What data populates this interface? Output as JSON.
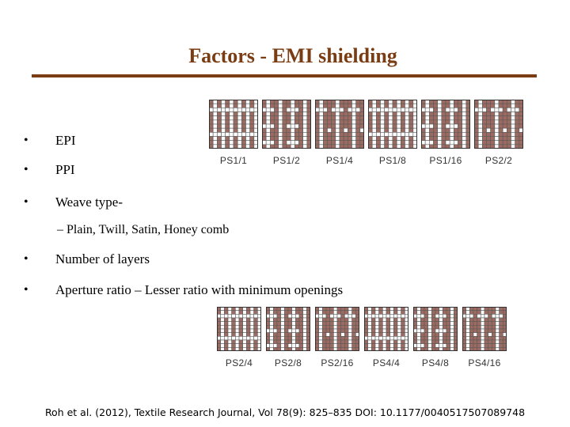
{
  "slide": {
    "title": "Factors - EMI shielding",
    "bullet_symbol": "•",
    "bullets": [
      {
        "text": "EPI"
      },
      {
        "text": "PPI"
      },
      {
        "text": "Weave type-"
      },
      {
        "text": "Number of layers"
      },
      {
        "text": "Aperture ratio – Lesser ratio with minimum openings"
      }
    ],
    "sub_bullet": "–  Plain, Twill, Satin, Honey comb",
    "citation": "Roh et al. (2012), Textile Research Journal, Vol 78(9): 825–835 DOI: 10.1177/0040517507089748"
  },
  "figure": {
    "colors": {
      "yarn": "#9c6a60",
      "light": "#ffffff",
      "grid": "#5a5a5a"
    },
    "top_row": [
      {
        "label": "PS1/1"
      },
      {
        "label": "PS1/2"
      },
      {
        "label": "PS1/4"
      },
      {
        "label": "PS1/8"
      },
      {
        "label": "PS1/16"
      },
      {
        "label": "PS2/2"
      }
    ],
    "bottom_row": [
      {
        "label": "PS2/4"
      },
      {
        "label": "PS2/8"
      },
      {
        "label": "PS2/16"
      },
      {
        "label": "PS4/4"
      },
      {
        "label": "PS4/8"
      },
      {
        "label": "PS4/16"
      }
    ]
  }
}
